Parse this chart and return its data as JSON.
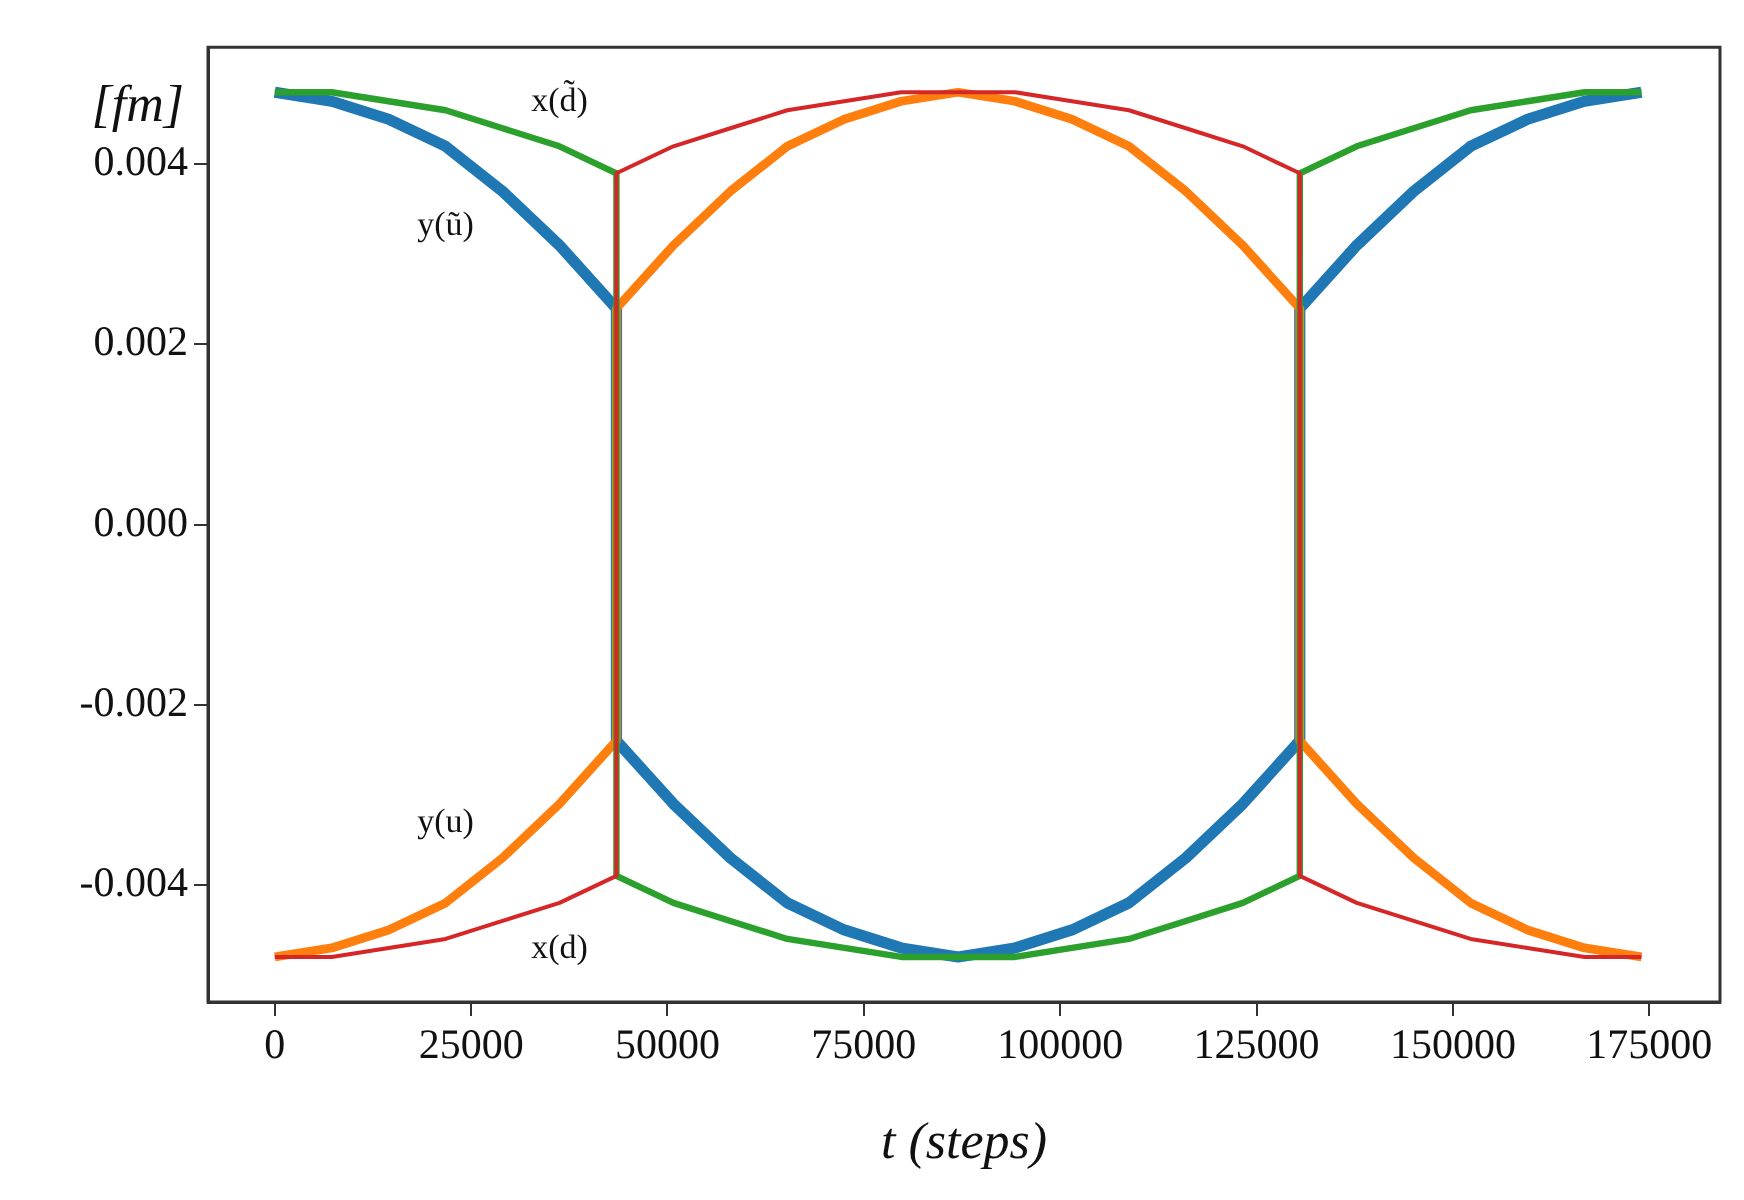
{
  "chart_data": {
    "type": "line",
    "xlabel": "t (steps)",
    "ylabel": "[fm]",
    "x": [
      0,
      7250,
      14500,
      21750,
      29000,
      36250,
      43500,
      43500,
      50750,
      58000,
      65250,
      72500,
      79750,
      87000,
      87000,
      94250,
      101500,
      108750,
      116000,
      123250,
      130500,
      130500,
      137750,
      145000,
      152250,
      159500,
      166750,
      174000
    ],
    "series": [
      {
        "name": "y(ũ)",
        "color": "#1f77b4",
        "values": [
          0.0048,
          0.0047,
          0.0045,
          0.0042,
          0.0037,
          0.0031,
          0.0024,
          -0.0024,
          -0.0031,
          -0.0037,
          -0.0042,
          -0.0045,
          -0.0047,
          -0.0048,
          -0.0048,
          -0.0047,
          -0.0045,
          -0.0042,
          -0.0037,
          -0.0031,
          -0.0024,
          0.0024,
          0.0031,
          0.0037,
          0.0042,
          0.0045,
          0.0047,
          0.0048
        ]
      },
      {
        "name": "y(u)",
        "color": "#ff7f0e",
        "values": [
          -0.0048,
          -0.0047,
          -0.0045,
          -0.0042,
          -0.0037,
          -0.0031,
          -0.0024,
          0.0024,
          0.0031,
          0.0037,
          0.0042,
          0.0045,
          0.0047,
          0.0048,
          0.0048,
          0.0047,
          0.0045,
          0.0042,
          0.0037,
          0.0031,
          0.0024,
          -0.0024,
          -0.0031,
          -0.0037,
          -0.0042,
          -0.0045,
          -0.0047,
          -0.0048
        ]
      },
      {
        "name": "x(d̃)",
        "color": "#2ca02c",
        "values": [
          0.0048,
          0.0048,
          0.0047,
          0.0046,
          0.0044,
          0.0042,
          0.0039,
          -0.0039,
          -0.0042,
          -0.0044,
          -0.0046,
          -0.0047,
          -0.0048,
          -0.0048,
          -0.0048,
          -0.0048,
          -0.0047,
          -0.0046,
          -0.0044,
          -0.0042,
          -0.0039,
          0.0039,
          0.0042,
          0.0044,
          0.0046,
          0.0047,
          0.0048,
          0.0048
        ]
      },
      {
        "name": "x(d)",
        "color": "#d62728",
        "values": [
          -0.0048,
          -0.0048,
          -0.0047,
          -0.0046,
          -0.0044,
          -0.0042,
          -0.0039,
          0.0039,
          0.0042,
          0.0044,
          0.0046,
          0.0047,
          0.0048,
          0.0048,
          0.0048,
          0.0048,
          0.0047,
          0.0046,
          0.0044,
          0.0042,
          0.0039,
          -0.0039,
          -0.0042,
          -0.0044,
          -0.0046,
          -0.0047,
          -0.0048,
          -0.0048
        ]
      }
    ],
    "xlim": [
      -8500,
      184000
    ],
    "xticks": [
      0,
      25000,
      50000,
      75000,
      100000,
      125000,
      150000,
      175000
    ],
    "ylim": [
      -0.0053,
      0.0053
    ],
    "yticks": [
      -0.004,
      -0.002,
      {
        "value": 0,
        "label": "0.000"
      },
      0.002,
      0.004
    ],
    "grid": false,
    "legend": false
  }
}
